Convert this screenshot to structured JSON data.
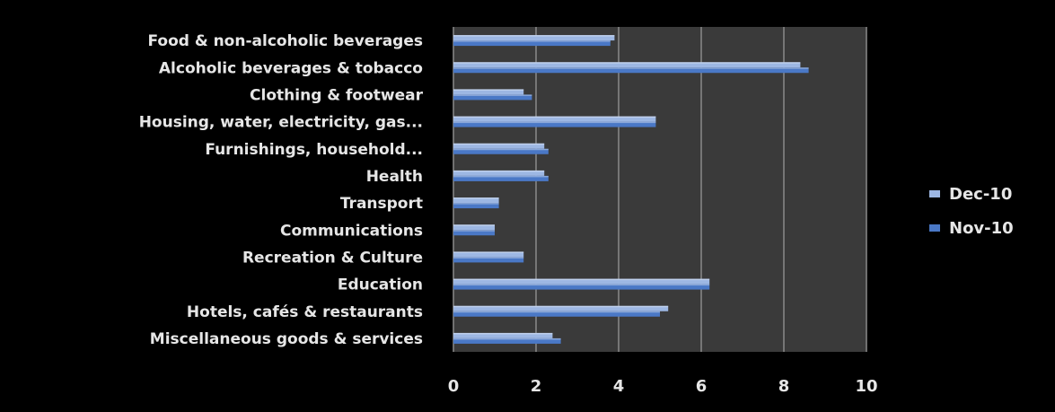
{
  "chart_data": {
    "type": "bar",
    "orientation": "horizontal",
    "categories": [
      "Food & non-alcoholic beverages",
      "Alcoholic beverages & tobacco",
      "Clothing & footwear",
      "Housing, water,  electricity, gas...",
      "Furnishings, household...",
      "Health",
      "Transport",
      "Communications",
      "Recreation & Culture",
      "Education",
      "Hotels, cafés & restaurants",
      "Miscellaneous goods & services"
    ],
    "series": [
      {
        "name": "Dec-10",
        "color": "#9db7e3",
        "values": [
          3.9,
          8.4,
          1.7,
          4.9,
          2.2,
          2.2,
          1.1,
          1.0,
          1.7,
          6.2,
          5.2,
          2.4
        ]
      },
      {
        "name": "Nov-10",
        "color": "#4a78c6",
        "values": [
          3.8,
          8.6,
          1.9,
          4.9,
          2.3,
          2.3,
          1.1,
          1.0,
          1.7,
          6.2,
          5.0,
          2.6
        ]
      }
    ],
    "xlim": [
      0,
      10
    ],
    "xticks": [
      "0",
      "2",
      "4",
      "6",
      "8",
      "10"
    ],
    "grid": true,
    "legend_position": "right",
    "plot_background": "#3a3a3a",
    "gridline_color": "#8a8a8a"
  }
}
